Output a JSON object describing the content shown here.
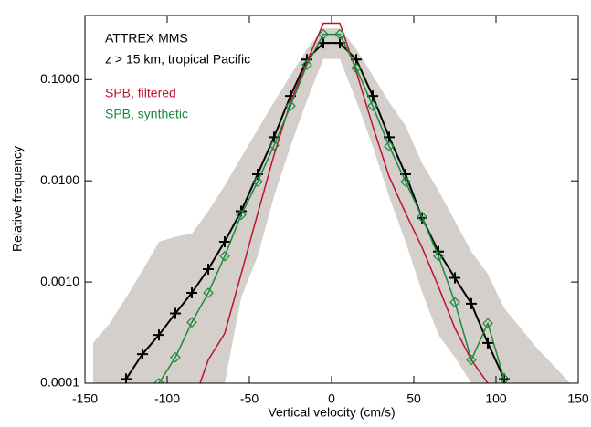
{
  "chart_data": {
    "type": "line",
    "annotations": [
      "z > 15 km, tropical Pacific"
    ],
    "xlabel": "Vertical velocity (cm/s)",
    "ylabel": "Relative frequency",
    "xlim": [
      -150,
      150
    ],
    "xticks": [
      -150,
      -100,
      -50,
      0,
      50,
      100,
      150
    ],
    "ylim": [
      0.0001,
      0.43
    ],
    "yscale": "log",
    "yticks": [
      {
        "value": 0.0001,
        "label": "0.0001"
      },
      {
        "value": 0.001,
        "label": "0.0010"
      },
      {
        "value": 0.01,
        "label": "0.0100"
      },
      {
        "value": 0.1,
        "label": "0.1000"
      }
    ],
    "band": {
      "color": "#d4cfcb",
      "x": [
        -145,
        -135,
        -125,
        -115,
        -105,
        -95,
        -85,
        -75,
        -65,
        -55,
        -45,
        -35,
        -25,
        -15,
        -5,
        5,
        15,
        25,
        35,
        45,
        55,
        65,
        75,
        85,
        95,
        105,
        115,
        125,
        135,
        145
      ],
      "lower": [
        0.0001,
        0.0001,
        0.0001,
        0.0001,
        0.0001,
        0.0001,
        0.0001,
        0.0001,
        0.0001,
        0.0007,
        0.0018,
        0.007,
        0.022,
        0.062,
        0.16,
        0.16,
        0.062,
        0.022,
        0.007,
        0.0025,
        0.0008,
        0.0003,
        0.00018,
        0.0001,
        0.0001,
        0.0001,
        0.0001,
        0.0001,
        0.0001,
        0.0001
      ],
      "upper": [
        0.00025,
        0.00039,
        0.0007,
        0.0013,
        0.0025,
        0.0028,
        0.003,
        0.005,
        0.009,
        0.017,
        0.032,
        0.06,
        0.11,
        0.2,
        0.32,
        0.32,
        0.2,
        0.11,
        0.06,
        0.035,
        0.015,
        0.008,
        0.004,
        0.002,
        0.0012,
        0.00055,
        0.00035,
        0.00022,
        0.00015,
        0.0001
      ]
    },
    "series": [
      {
        "name": "ATTREX MMS",
        "color": "#000000",
        "marker": "plus",
        "x": [
          -125,
          -115,
          -105,
          -95,
          -85,
          -75,
          -65,
          -55,
          -45,
          -35,
          -25,
          -15,
          -5,
          5,
          15,
          25,
          35,
          45,
          55,
          65,
          75,
          85,
          95,
          105
        ],
        "values": [
          0.00011,
          0.000194,
          0.0003,
          0.00049,
          0.00078,
          0.00134,
          0.0025,
          0.005,
          0.0116,
          0.027,
          0.069,
          0.158,
          0.23,
          0.23,
          0.158,
          0.069,
          0.027,
          0.0116,
          0.0043,
          0.002,
          0.0011,
          0.00061,
          0.00025,
          0.00011
        ]
      },
      {
        "name": "SPB, filtered",
        "color": "#c0112e",
        "marker": "none",
        "x": [
          -80,
          -75,
          -65,
          -55,
          -45,
          -35,
          -25,
          -15,
          -5,
          5,
          15,
          25,
          35,
          45,
          55,
          65,
          75,
          85,
          95
        ],
        "values": [
          0.0001,
          0.00017,
          0.00031,
          0.0012,
          0.0047,
          0.018,
          0.06,
          0.15,
          0.36,
          0.36,
          0.12,
          0.035,
          0.011,
          0.0048,
          0.0022,
          0.0009,
          0.00035,
          0.00017,
          0.0001
        ]
      },
      {
        "name": "SPB, synthetic",
        "color": "#1a8a3a",
        "marker": "diamond",
        "x": [
          -105,
          -95,
          -85,
          -75,
          -65,
          -55,
          -45,
          -35,
          -25,
          -15,
          -5,
          5,
          15,
          25,
          35,
          45,
          55,
          65,
          75,
          85,
          95,
          105
        ],
        "values": [
          0.0001,
          0.00018,
          0.0004,
          0.00078,
          0.0018,
          0.0046,
          0.0098,
          0.0224,
          0.055,
          0.14,
          0.28,
          0.28,
          0.13,
          0.055,
          0.022,
          0.0098,
          0.0044,
          0.0018,
          0.00063,
          0.00017,
          0.00039,
          0.00011
        ]
      }
    ]
  }
}
